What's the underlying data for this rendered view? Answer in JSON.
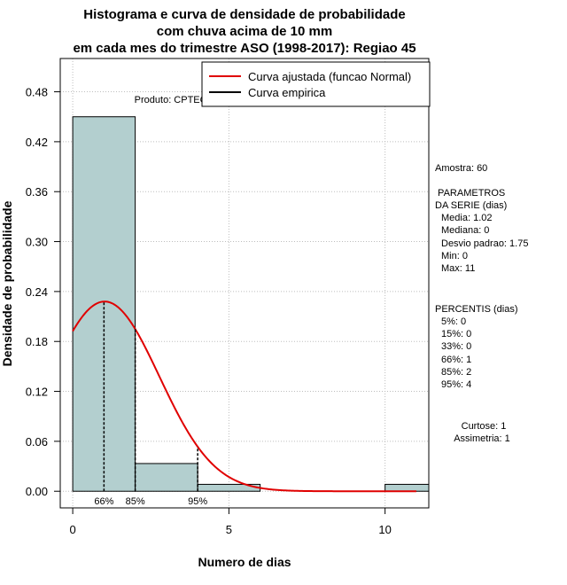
{
  "chart_data": {
    "type": "bar",
    "title_lines": [
      "Histograma e curva de densidade de probabilidade",
      "com chuva acima de 10 mm",
      "em cada mes do trimestre ASO (1998-2017): Regiao 45"
    ],
    "xlabel": "Numero de dias",
    "ylabel": "Densidade de probabilidade",
    "xlim": [
      -0.4,
      11.4
    ],
    "ylim": [
      -0.02,
      0.52
    ],
    "x_ticks": [
      0,
      5,
      10
    ],
    "y_ticks": [
      0.0,
      0.06,
      0.12,
      0.18,
      0.24,
      0.3,
      0.36,
      0.42,
      0.48
    ],
    "y_tick_labels": [
      "0.00",
      "0.06",
      "0.12",
      "0.18",
      "0.24",
      "0.30",
      "0.36",
      "0.42",
      "0.48"
    ],
    "bins": [
      {
        "x0": 0,
        "x1": 2,
        "density": 0.45
      },
      {
        "x0": 2,
        "x1": 4,
        "density": 0.0333
      },
      {
        "x0": 4,
        "x1": 6,
        "density": 0.0083
      },
      {
        "x0": 6,
        "x1": 8,
        "density": 0.0
      },
      {
        "x0": 8,
        "x1": 10,
        "density": 0.0
      },
      {
        "x0": 10,
        "x1": 12,
        "density": 0.0083
      }
    ],
    "normal_fit": {
      "mean": 1.02,
      "sd": 1.75,
      "x_from": 0,
      "x_to": 11
    },
    "percentile_markers": [
      {
        "label": "66%",
        "x": 1
      },
      {
        "label": "85%",
        "x": 2
      },
      {
        "label": "95%",
        "x": 4
      }
    ],
    "grid": true,
    "legend_position": "top-right",
    "legend": [
      {
        "label": "Curva ajustada (funcao Normal)",
        "color": "#e00000"
      },
      {
        "label": "Curva empirica",
        "color": "#000000"
      }
    ],
    "colors": {
      "bar_fill": "#b3cfcf",
      "fit_line": "#e00000",
      "empirical": "#000000",
      "grid": "#bdbdbd"
    }
  },
  "annotations": {
    "produto": "Produto: CPTEC/INPE"
  },
  "side_panel": {
    "amostra": "Amostra: 60",
    "parametros_title": [
      " PARAMETROS",
      "DA SERIE (dias)"
    ],
    "parametros": [
      "Media: 1.02",
      "Mediana: 0",
      "Desvio padrao: 1.75",
      "Min: 0",
      "Max: 11"
    ],
    "percentis_title": "PERCENTIS (dias)",
    "percentis": [
      "5%: 0",
      "15%: 0",
      "33%: 0",
      "66%: 1",
      "85%: 2",
      "95%: 4"
    ],
    "curtose": "Curtose: 1",
    "assimetria": "Assimetria: 1"
  }
}
